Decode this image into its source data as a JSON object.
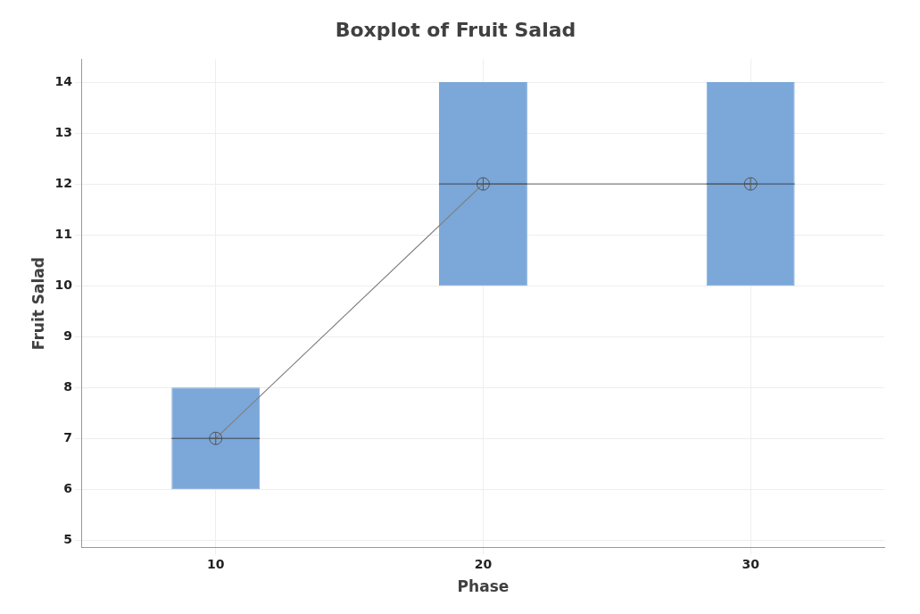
{
  "chart_data": {
    "type": "box",
    "title": "Boxplot of Fruit Salad",
    "xlabel": "Phase",
    "ylabel": "Fruit Salad",
    "categories": [
      "10",
      "20",
      "30"
    ],
    "ylim": [
      4.85,
      14.45
    ],
    "yticks": [
      5,
      6,
      7,
      8,
      9,
      10,
      11,
      12,
      13,
      14
    ],
    "grid": true,
    "marker": "circle",
    "series": [
      {
        "color": "#7ba7d9",
        "boxes": [
          {
            "low": 6,
            "q1": 6,
            "median": 7,
            "q3": 8,
            "high": 8
          },
          {
            "low": 10,
            "q1": 10,
            "median": 12,
            "q3": 14,
            "high": 14
          },
          {
            "low": 10,
            "q1": 10,
            "median": 12,
            "q3": 14,
            "high": 14
          }
        ]
      },
      {
        "type": "line",
        "color": "#808080",
        "values": [
          7,
          12,
          12
        ]
      }
    ]
  }
}
